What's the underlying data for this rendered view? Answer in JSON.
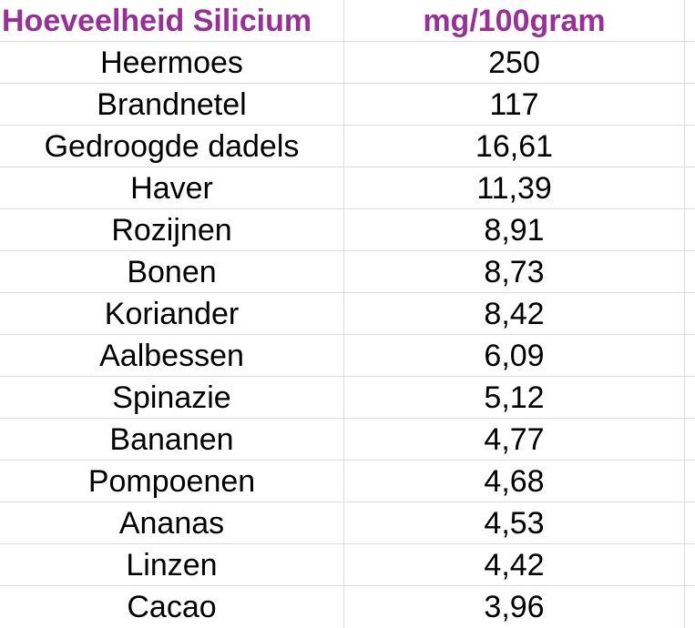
{
  "table": {
    "header": {
      "name": "Hoeveelheid Silicium",
      "value": "mg/100gram"
    },
    "header_color": "#9a2f9a",
    "rows": [
      {
        "name": "Heermoes",
        "value": "250"
      },
      {
        "name": "Brandnetel",
        "value": "117"
      },
      {
        "name": "Gedroogde dadels",
        "value": "16,61"
      },
      {
        "name": "Haver",
        "value": "11,39"
      },
      {
        "name": "Rozijnen",
        "value": "8,91"
      },
      {
        "name": "Bonen",
        "value": "8,73"
      },
      {
        "name": "Koriander",
        "value": "8,42"
      },
      {
        "name": "Aalbessen",
        "value": "6,09"
      },
      {
        "name": "Spinazie",
        "value": "5,12"
      },
      {
        "name": "Bananen",
        "value": "4,77"
      },
      {
        "name": "Pompoenen",
        "value": "4,68"
      },
      {
        "name": "Ananas",
        "value": "4,53"
      },
      {
        "name": "Linzen",
        "value": "4,42"
      },
      {
        "name": "Cacao",
        "value": "3,96"
      }
    ]
  }
}
